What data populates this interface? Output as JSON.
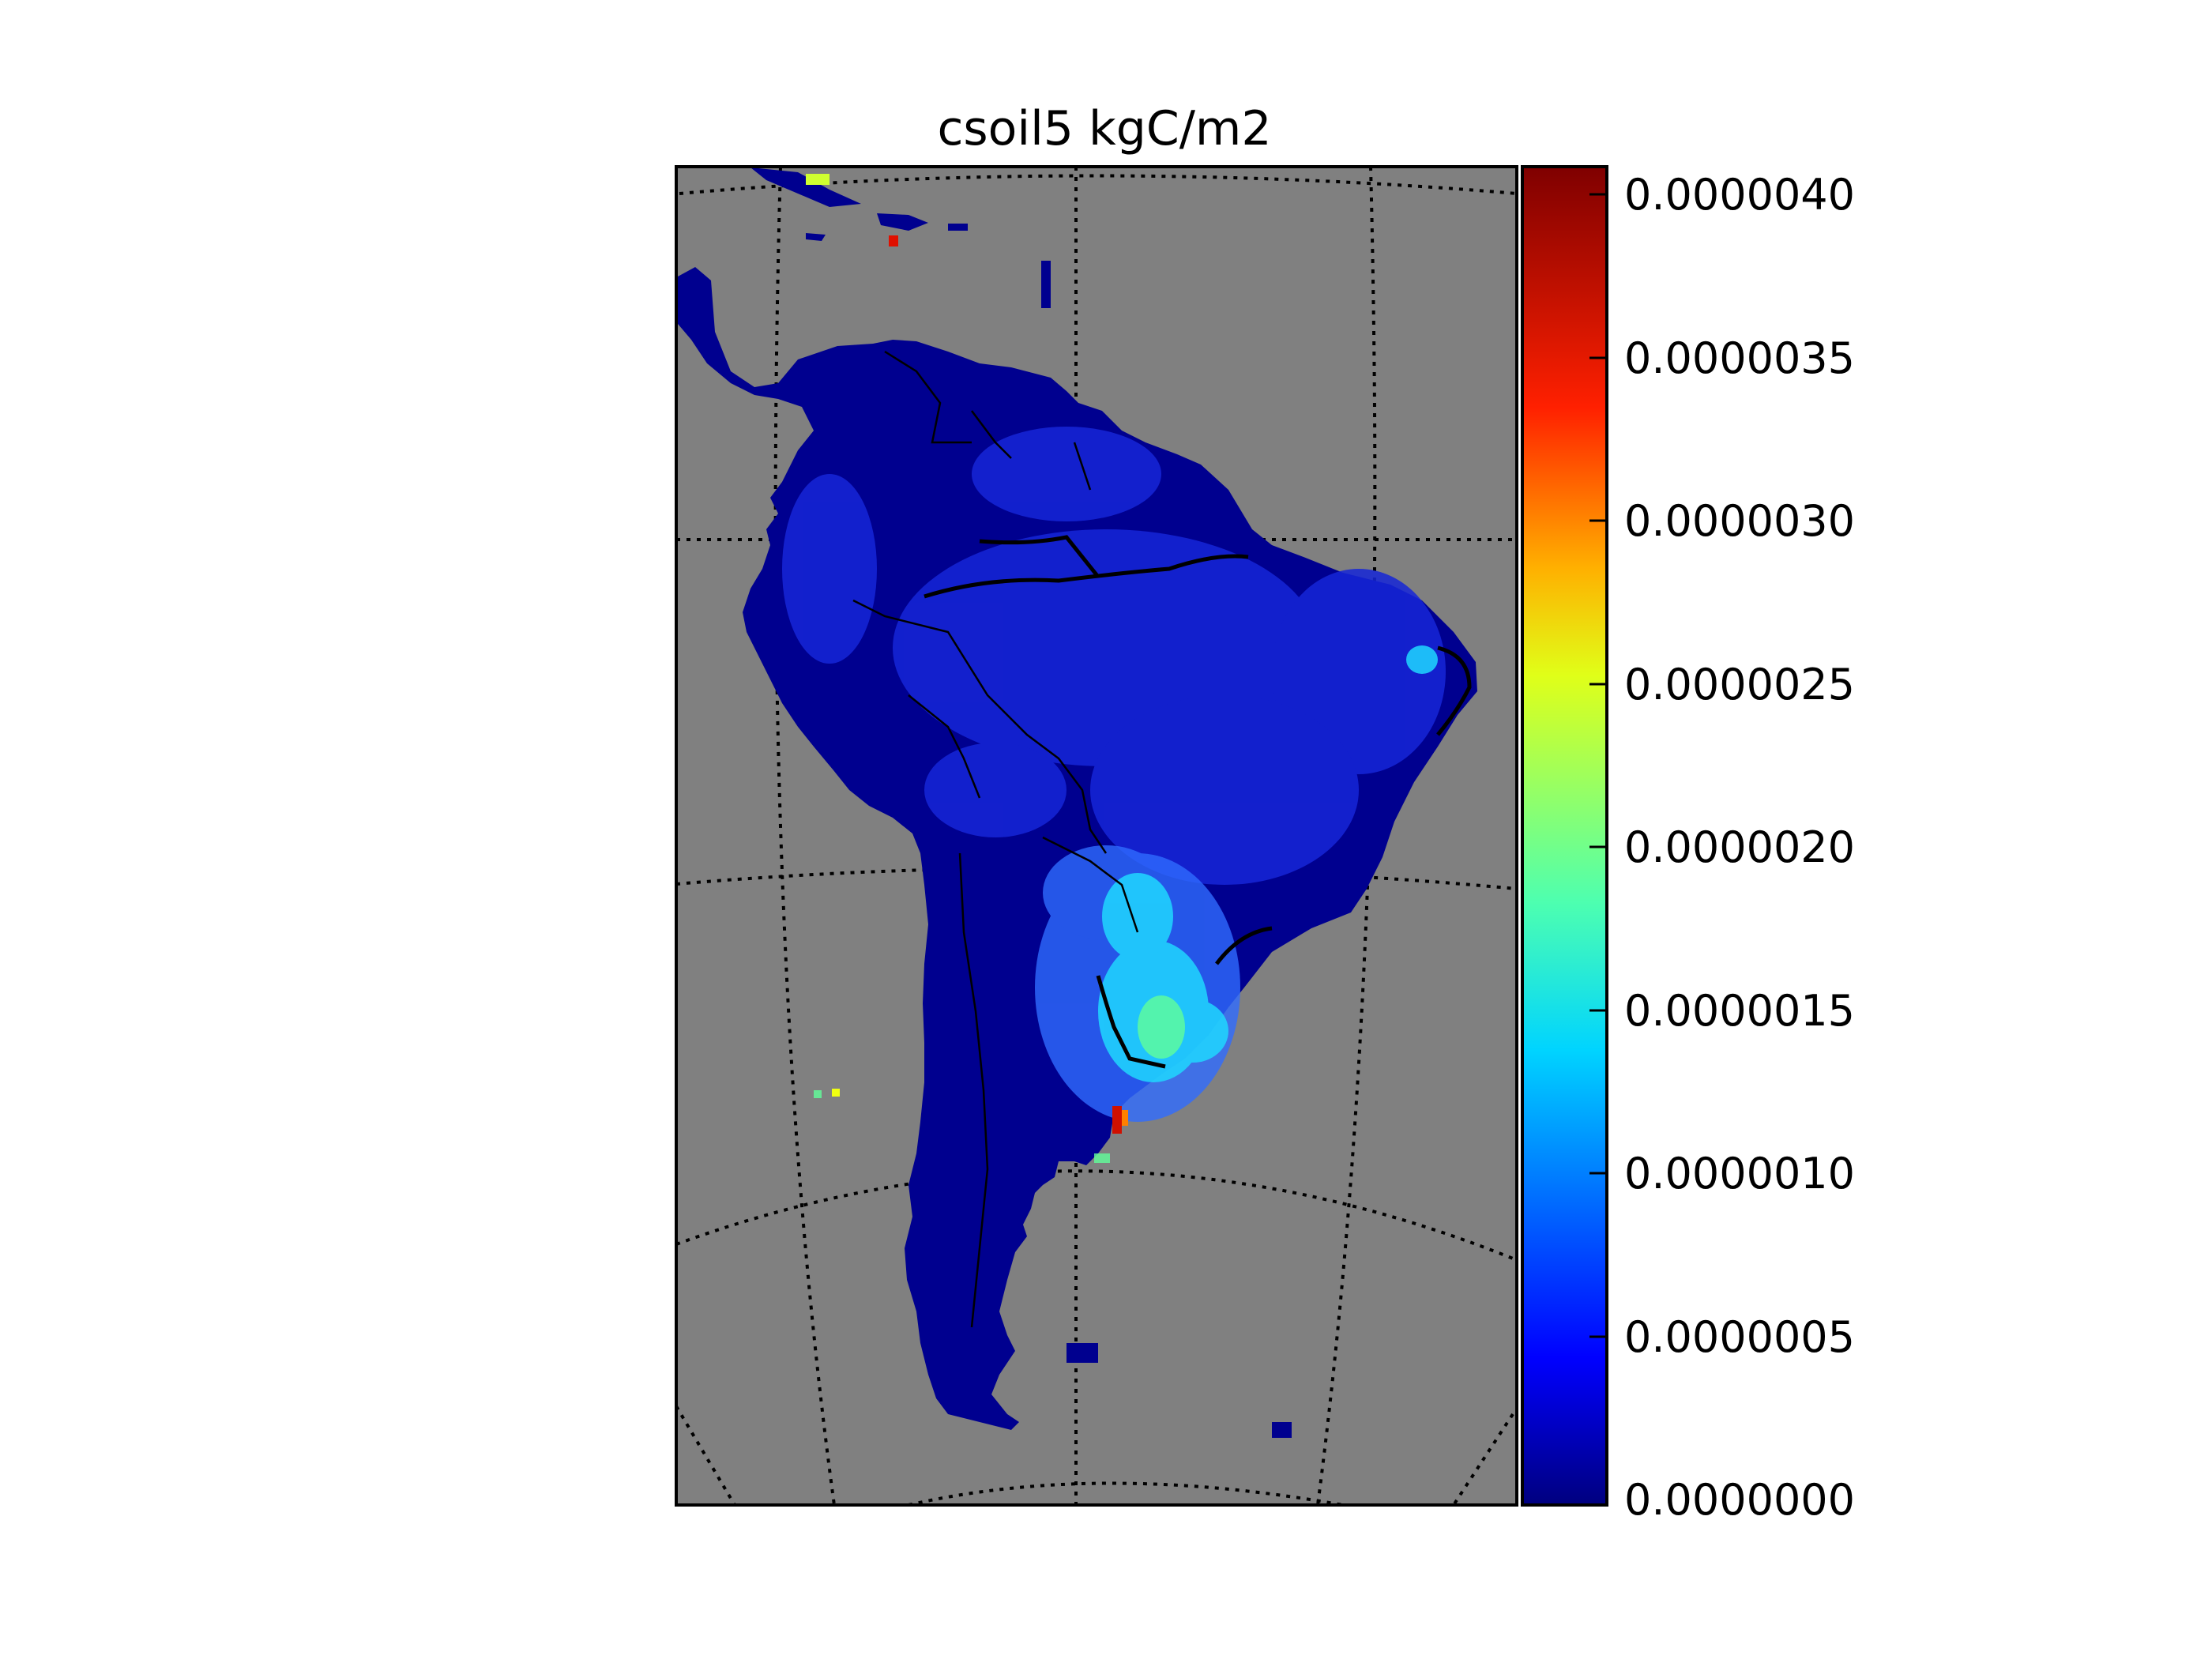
{
  "figure": {
    "title": "csoil5  kgC/m2",
    "background_color": "#ffffff",
    "map_background_color": "#808080"
  },
  "chart_data": {
    "type": "heatmap",
    "title": "csoil5  kgC/m2",
    "variable": "csoil5",
    "units": "kgC/m2",
    "region": "South America",
    "projection_graticule": "dotted",
    "colormap": "jet",
    "colorbar": {
      "position": "right",
      "vmin": 0.0,
      "vmax": 4.1e-06,
      "ticks": [
        0.0,
        5e-07,
        1e-06,
        1.5e-06,
        2e-06,
        2.5e-06,
        3e-06,
        3.5e-06,
        4e-06
      ],
      "tick_labels": [
        "0.0000000",
        "0.0000005",
        "0.0000010",
        "0.0000015",
        "0.0000020",
        "0.0000025",
        "0.0000030",
        "0.0000035",
        "0.0000040"
      ]
    },
    "colors": {
      "land_low": "#00008f",
      "mid_blue": "#1020d8",
      "cyan": "#20d0ff",
      "green": "#70ff90",
      "yellow": "#f0ff10",
      "red": "#e01000",
      "dark_red": "#800000"
    }
  }
}
